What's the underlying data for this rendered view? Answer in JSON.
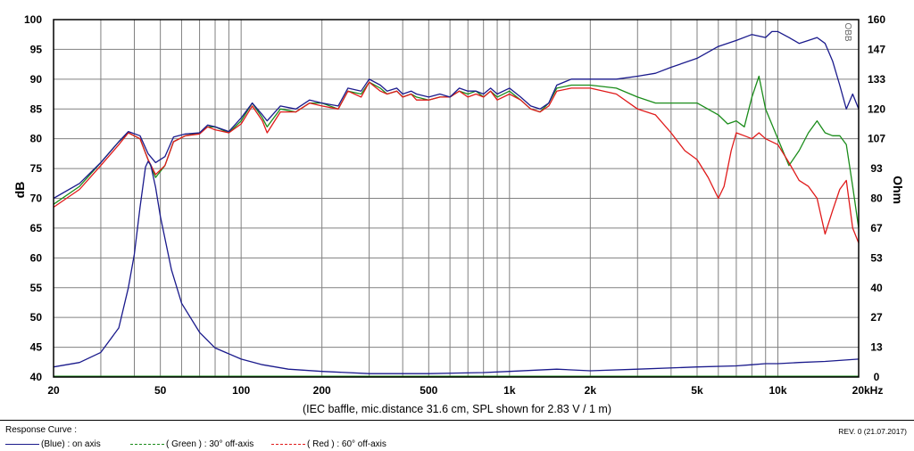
{
  "chart_data": {
    "type": "line",
    "x_scale": "log",
    "xlim": [
      20,
      20000
    ],
    "ylim_left": [
      40,
      100
    ],
    "ylim_right": [
      0,
      160
    ],
    "ylabel": "dB",
    "ylabel_right": "Ohm",
    "x_tick_labels": [
      {
        "value": 20,
        "label": "20"
      },
      {
        "value": 50,
        "label": "50"
      },
      {
        "value": 100,
        "label": "100"
      },
      {
        "value": 200,
        "label": "200"
      },
      {
        "value": 500,
        "label": "500"
      },
      {
        "value": 1000,
        "label": "1k"
      },
      {
        "value": 2000,
        "label": "2k"
      },
      {
        "value": 5000,
        "label": "5k"
      },
      {
        "value": 10000,
        "label": "10k"
      },
      {
        "value": 20000,
        "label": "20kHz"
      }
    ],
    "y_ticks_left": [
      100,
      95,
      90,
      85,
      80,
      75,
      70,
      65,
      60,
      55,
      50,
      45,
      40
    ],
    "y_ticks_right": [
      "160",
      "147",
      "133",
      "120",
      "107",
      "93",
      "80",
      "67",
      "53",
      "40",
      "27",
      "13",
      "0"
    ],
    "caption": "(IEC baffle, mic.distance 31.6 cm, SPL shown for 2.83 V / 1 m)",
    "side_label": "ОВВ",
    "grid": true,
    "series": [
      {
        "name": "(Blue) : on axis",
        "color": "#1a1a8c",
        "axis": "left",
        "x": [
          20,
          25,
          30,
          35,
          38,
          42,
          45,
          48,
          52,
          56,
          62,
          70,
          75,
          80,
          90,
          100,
          110,
          120,
          125,
          140,
          160,
          180,
          200,
          230,
          250,
          280,
          300,
          330,
          350,
          380,
          400,
          430,
          450,
          500,
          550,
          600,
          650,
          700,
          750,
          800,
          850,
          900,
          1000,
          1100,
          1200,
          1300,
          1400,
          1500,
          1700,
          2000,
          2500,
          3000,
          3500,
          4000,
          5000,
          6000,
          7000,
          8000,
          9000,
          9500,
          10000,
          11000,
          12000,
          13000,
          14000,
          15000,
          16000,
          17000,
          18000,
          19000,
          20000
        ],
        "y": [
          70.0,
          72.5,
          76.0,
          79.5,
          81.2,
          80.5,
          77.5,
          76.0,
          77.0,
          80.3,
          80.8,
          81.0,
          82.3,
          82.0,
          81.2,
          83.5,
          86.0,
          84.0,
          83.0,
          85.5,
          85.0,
          86.5,
          86.0,
          85.5,
          88.5,
          88.0,
          90.0,
          89.0,
          88.0,
          88.5,
          87.5,
          88.0,
          87.5,
          87.0,
          87.5,
          87.0,
          88.5,
          88.0,
          88.0,
          87.5,
          88.5,
          87.5,
          88.5,
          87.0,
          85.5,
          85.0,
          86.0,
          89.0,
          90.0,
          90.0,
          90.0,
          90.5,
          91.0,
          92.0,
          93.5,
          95.5,
          96.5,
          97.5,
          97.0,
          98.0,
          98.0,
          97.0,
          96.0,
          96.5,
          97.0,
          96.0,
          93.0,
          89.0,
          85.0,
          87.5,
          85.0
        ]
      },
      {
        "name": "( Green ) : 30° off-axis",
        "color": "#1a8c1a",
        "axis": "left",
        "x": [
          20,
          25,
          30,
          35,
          38,
          42,
          45,
          48,
          52,
          56,
          62,
          70,
          75,
          80,
          90,
          100,
          110,
          120,
          125,
          140,
          160,
          180,
          200,
          230,
          250,
          280,
          300,
          330,
          350,
          380,
          400,
          430,
          450,
          500,
          550,
          600,
          650,
          700,
          750,
          800,
          850,
          900,
          1000,
          1100,
          1200,
          1300,
          1400,
          1500,
          1700,
          2000,
          2500,
          3000,
          3500,
          4000,
          5000,
          6000,
          6500,
          7000,
          7500,
          8000,
          8500,
          9000,
          10000,
          11000,
          12000,
          13000,
          14000,
          15000,
          16000,
          17000,
          18000,
          19000,
          20000
        ],
        "y": [
          69.0,
          72.0,
          76.0,
          79.5,
          81.0,
          80.0,
          76.5,
          73.5,
          75.5,
          79.5,
          80.5,
          81.0,
          82.0,
          82.0,
          81.0,
          83.0,
          86.0,
          83.5,
          82.0,
          85.0,
          84.5,
          86.0,
          86.0,
          85.0,
          88.0,
          87.5,
          89.5,
          88.5,
          87.5,
          88.0,
          87.0,
          87.5,
          87.0,
          86.5,
          87.0,
          87.0,
          88.0,
          87.5,
          88.0,
          87.0,
          88.0,
          87.0,
          88.0,
          86.5,
          85.0,
          84.5,
          86.0,
          88.5,
          89.0,
          89.0,
          88.5,
          87.0,
          86.0,
          86.0,
          86.0,
          84.0,
          82.5,
          83.0,
          82.0,
          87.0,
          90.5,
          85.0,
          80.0,
          75.5,
          78.0,
          81.0,
          83.0,
          81.0,
          80.5,
          80.5,
          79.0,
          72.0,
          65.0
        ]
      },
      {
        "name": "( Red ) : 60° off-axis",
        "color": "#e01a1a",
        "axis": "left",
        "x": [
          20,
          25,
          30,
          35,
          38,
          42,
          45,
          48,
          52,
          56,
          62,
          70,
          75,
          80,
          90,
          100,
          110,
          120,
          125,
          140,
          160,
          180,
          200,
          230,
          250,
          280,
          300,
          330,
          350,
          380,
          400,
          430,
          450,
          500,
          550,
          600,
          650,
          700,
          750,
          800,
          850,
          900,
          1000,
          1100,
          1200,
          1300,
          1400,
          1500,
          1700,
          2000,
          2500,
          3000,
          3500,
          4000,
          4500,
          5000,
          5500,
          6000,
          6300,
          6700,
          7000,
          7500,
          8000,
          8500,
          9000,
          10000,
          11000,
          12000,
          13000,
          14000,
          15000,
          16000,
          17000,
          18000,
          19000,
          20000
        ],
        "y": [
          68.5,
          71.5,
          75.5,
          79.0,
          81.0,
          80.0,
          76.5,
          74.0,
          75.5,
          79.5,
          80.5,
          80.8,
          82.0,
          81.5,
          81.0,
          82.5,
          85.5,
          83.0,
          81.0,
          84.5,
          84.5,
          86.0,
          85.5,
          85.0,
          88.0,
          87.0,
          89.5,
          88.0,
          87.5,
          88.0,
          87.0,
          87.5,
          86.5,
          86.5,
          87.0,
          87.0,
          88.0,
          87.0,
          87.5,
          87.0,
          88.0,
          86.5,
          87.5,
          86.5,
          85.0,
          84.5,
          85.5,
          88.0,
          88.5,
          88.5,
          87.5,
          85.0,
          84.0,
          81.0,
          78.0,
          76.5,
          73.5,
          70.0,
          72.0,
          78.0,
          81.0,
          80.5,
          80.0,
          81.0,
          80.0,
          79.0,
          76.0,
          73.0,
          72.0,
          70.0,
          64.0,
          68.0,
          71.5,
          73.0,
          65.0,
          62.5
        ]
      },
      {
        "name": "Impedance",
        "color": "#1a1a8c",
        "axis": "right",
        "x": [
          20,
          25,
          30,
          35,
          38,
          40,
          42,
          44,
          45,
          46,
          48,
          50,
          55,
          60,
          70,
          80,
          100,
          120,
          150,
          200,
          300,
          500,
          800,
          1000,
          1500,
          2000,
          3000,
          5000,
          7000,
          8000,
          9000,
          10000,
          12000,
          15000,
          20000
        ],
        "y_ohm": [
          4.5,
          6.5,
          11.0,
          22.0,
          40.0,
          55.0,
          76.0,
          94.0,
          96.5,
          95.0,
          85.0,
          72.0,
          48.0,
          33.0,
          20.0,
          13.0,
          8.0,
          5.5,
          3.5,
          2.5,
          1.5,
          1.5,
          2.0,
          2.5,
          3.5,
          2.8,
          3.5,
          4.5,
          5.0,
          5.5,
          6.0,
          6.0,
          6.5,
          7.0,
          8.0
        ]
      }
    ],
    "legend_placement": "bottom"
  },
  "footer": {
    "legend_title": "Response Curve :",
    "blue_label": "(Blue)  : on axis",
    "green_label": "( Green ) : 30° off-axis",
    "red_label": "( Red ) : 60° off-axis",
    "revision": "REV. 0 (21.07.2017)"
  }
}
